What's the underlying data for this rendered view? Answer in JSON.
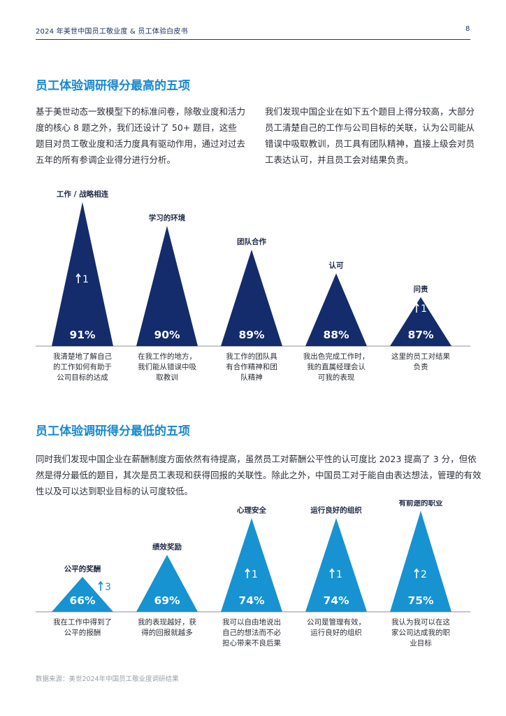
{
  "header": {
    "title": "2024 年美世中国员工敬业度 & 员工体验白皮书",
    "page_number": "8"
  },
  "section_top": {
    "title": "员工体验调研得分最高的五项",
    "paragraph_left": "基于美世动态一致模型下的标准问卷，除敬业度和活力度的核心 8 题之外，我们还设计了 50+ 题目，这些题目对员工敬业度和活力度具有驱动作用，通过对过去五年的所有参调企业得分进行分析。",
    "paragraph_right": "我们发现中国企业在如下五个题目上得分较高，大部分员工清楚自己的工作与公司目标的关联，认为公司能从错误中吸取教训，员工具有团队精神，直接上级会对员工表达认可，并且员工会对结果负责。"
  },
  "section_bottom": {
    "title": "员工体验调研得分最低的五项",
    "paragraph": "同时我们发现中国企业在薪酬制度方面依然有待提高，虽然员工对薪酬公平性的认可度比 2023 提高了 3 分，但依然是得分最低的题目，其次是员工表现和获得回报的关联性。除此之外，中国员工对于能自由表达想法，管理的有效性以及可以达到职业目标的认可度较低。"
  },
  "source": "数据来源：美世2024年中国员工敬业度调研结果",
  "colors": {
    "top_triangles": "#142c6b",
    "bottom_triangles": "#1793d2",
    "baseline": "#8a8f99",
    "section_title": "#1689cf"
  },
  "chart_data": [
    {
      "type": "bar",
      "title": "",
      "mark_shape": "triangle",
      "categories": [
        "工作 / 战略相连",
        "学习的环境",
        "团队合作",
        "认可",
        "问责"
      ],
      "values": [
        91,
        90,
        89,
        88,
        87
      ],
      "value_labels": [
        "91%",
        "90%",
        "89%",
        "88%",
        "87%"
      ],
      "change_labels": [
        "1",
        "",
        "",
        "",
        "1"
      ],
      "descriptions": [
        [
          "我清楚地了解自己",
          "的工作如何有助于",
          "公司目标的达成"
        ],
        [
          "在我工作的地方，",
          "我们能从错误中吸",
          "取教训"
        ],
        [
          "我工作的团队具",
          "有合作精神和团",
          "队精神"
        ],
        [
          "我出色完成工作时，",
          "我的直属经理会认",
          "可我的表现"
        ],
        [
          "这里的员工对结果",
          "负责"
        ]
      ],
      "color": "#142c6b"
    },
    {
      "type": "bar",
      "title": "",
      "mark_shape": "triangle",
      "categories": [
        "公平的奖酬",
        "绩效奖励",
        "心理安全",
        "运行良好的组织",
        "有前途的职业"
      ],
      "values": [
        66,
        69,
        74,
        74,
        75
      ],
      "value_labels": [
        "66%",
        "69%",
        "74%",
        "74%",
        "75%"
      ],
      "change_labels": [
        "3",
        "",
        "1",
        "1",
        "2"
      ],
      "descriptions": [
        [
          "我在工作中得到了",
          "公平的报酬"
        ],
        [
          "我的表现越好，获",
          "得的回报就越多"
        ],
        [
          "我可以自由地说出",
          "自己的想法而不必",
          "担心带来不良后果"
        ],
        [
          "公司是管理有效，",
          "运行良好的组织"
        ],
        [
          "我认为我可以在这",
          "家公司达成我的职",
          "业目标"
        ]
      ],
      "color": "#1793d2"
    }
  ]
}
